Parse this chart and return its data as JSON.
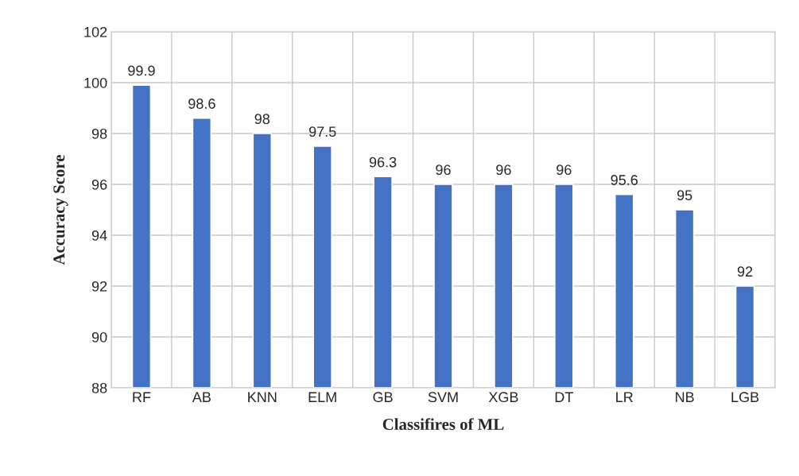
{
  "chart_data": {
    "type": "bar",
    "xlabel": "Classifires of ML",
    "ylabel": "Accuracy Score",
    "categories": [
      "RF",
      "AB",
      "KNN",
      "ELM",
      "GB",
      "SVM",
      "XGB",
      "DT",
      "LR",
      "NB",
      "LGB"
    ],
    "values": [
      99.9,
      98.6,
      98,
      97.5,
      96.3,
      96,
      96,
      96,
      95.6,
      95,
      92
    ],
    "color": "#4472c4",
    "ylim": [
      88,
      102
    ],
    "yticks": [
      88,
      90,
      92,
      94,
      96,
      98,
      100,
      102
    ],
    "grid": true,
    "data_labels": true
  }
}
